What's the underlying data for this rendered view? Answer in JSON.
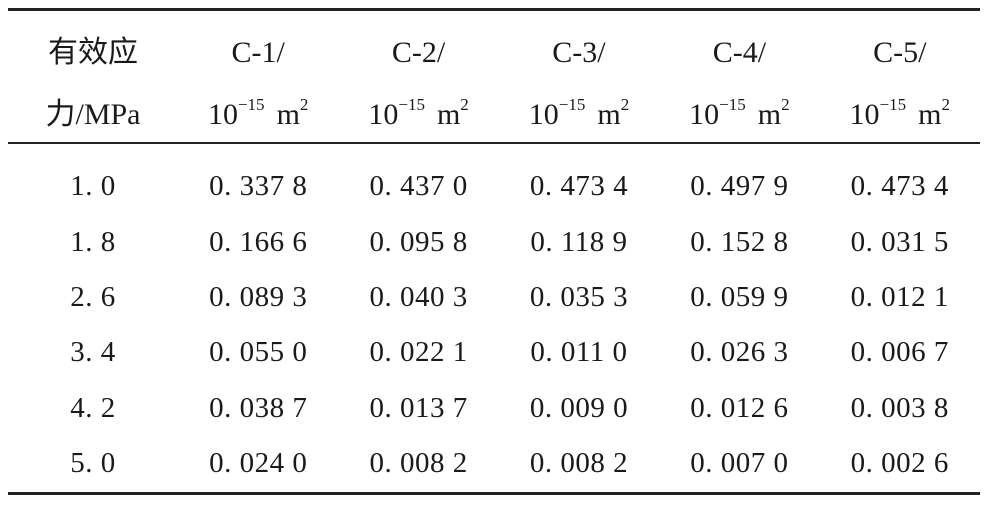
{
  "table": {
    "header": {
      "stress_line1": "有效应",
      "stress_line2": "力/MPa",
      "columns": [
        {
          "name": "C-1/",
          "unit_base": "10",
          "unit_exp": "−15",
          "unit_m": "m",
          "unit_m_exp": "2"
        },
        {
          "name": "C-2/",
          "unit_base": "10",
          "unit_exp": "−15",
          "unit_m": "m",
          "unit_m_exp": "2"
        },
        {
          "name": "C-3/",
          "unit_base": "10",
          "unit_exp": "−15",
          "unit_m": "m",
          "unit_m_exp": "2"
        },
        {
          "name": "C-4/",
          "unit_base": "10",
          "unit_exp": "−15",
          "unit_m": "m",
          "unit_m_exp": "2"
        },
        {
          "name": "C-5/",
          "unit_base": "10",
          "unit_exp": "−15",
          "unit_m": "m",
          "unit_m_exp": "2"
        }
      ]
    },
    "rows": [
      [
        "1. 0",
        "0. 337 8",
        "0. 437 0",
        "0. 473 4",
        "0. 497 9",
        "0. 473 4"
      ],
      [
        "1. 8",
        "0. 166 6",
        "0. 095 8",
        "0. 118 9",
        "0. 152 8",
        "0. 031 5"
      ],
      [
        "2. 6",
        "0. 089 3",
        "0. 040 3",
        "0. 035 3",
        "0. 059 9",
        "0. 012 1"
      ],
      [
        "3. 4",
        "0. 055 0",
        "0. 022 1",
        "0. 011 0",
        "0. 026 3",
        "0. 006 7"
      ],
      [
        "4. 2",
        "0. 038 7",
        "0. 013 7",
        "0. 009 0",
        "0. 012 6",
        "0. 003 8"
      ],
      [
        "5. 0",
        "0. 024 0",
        "0. 008 2",
        "0. 008 2",
        "0. 007 0",
        "0. 002 6"
      ]
    ]
  }
}
